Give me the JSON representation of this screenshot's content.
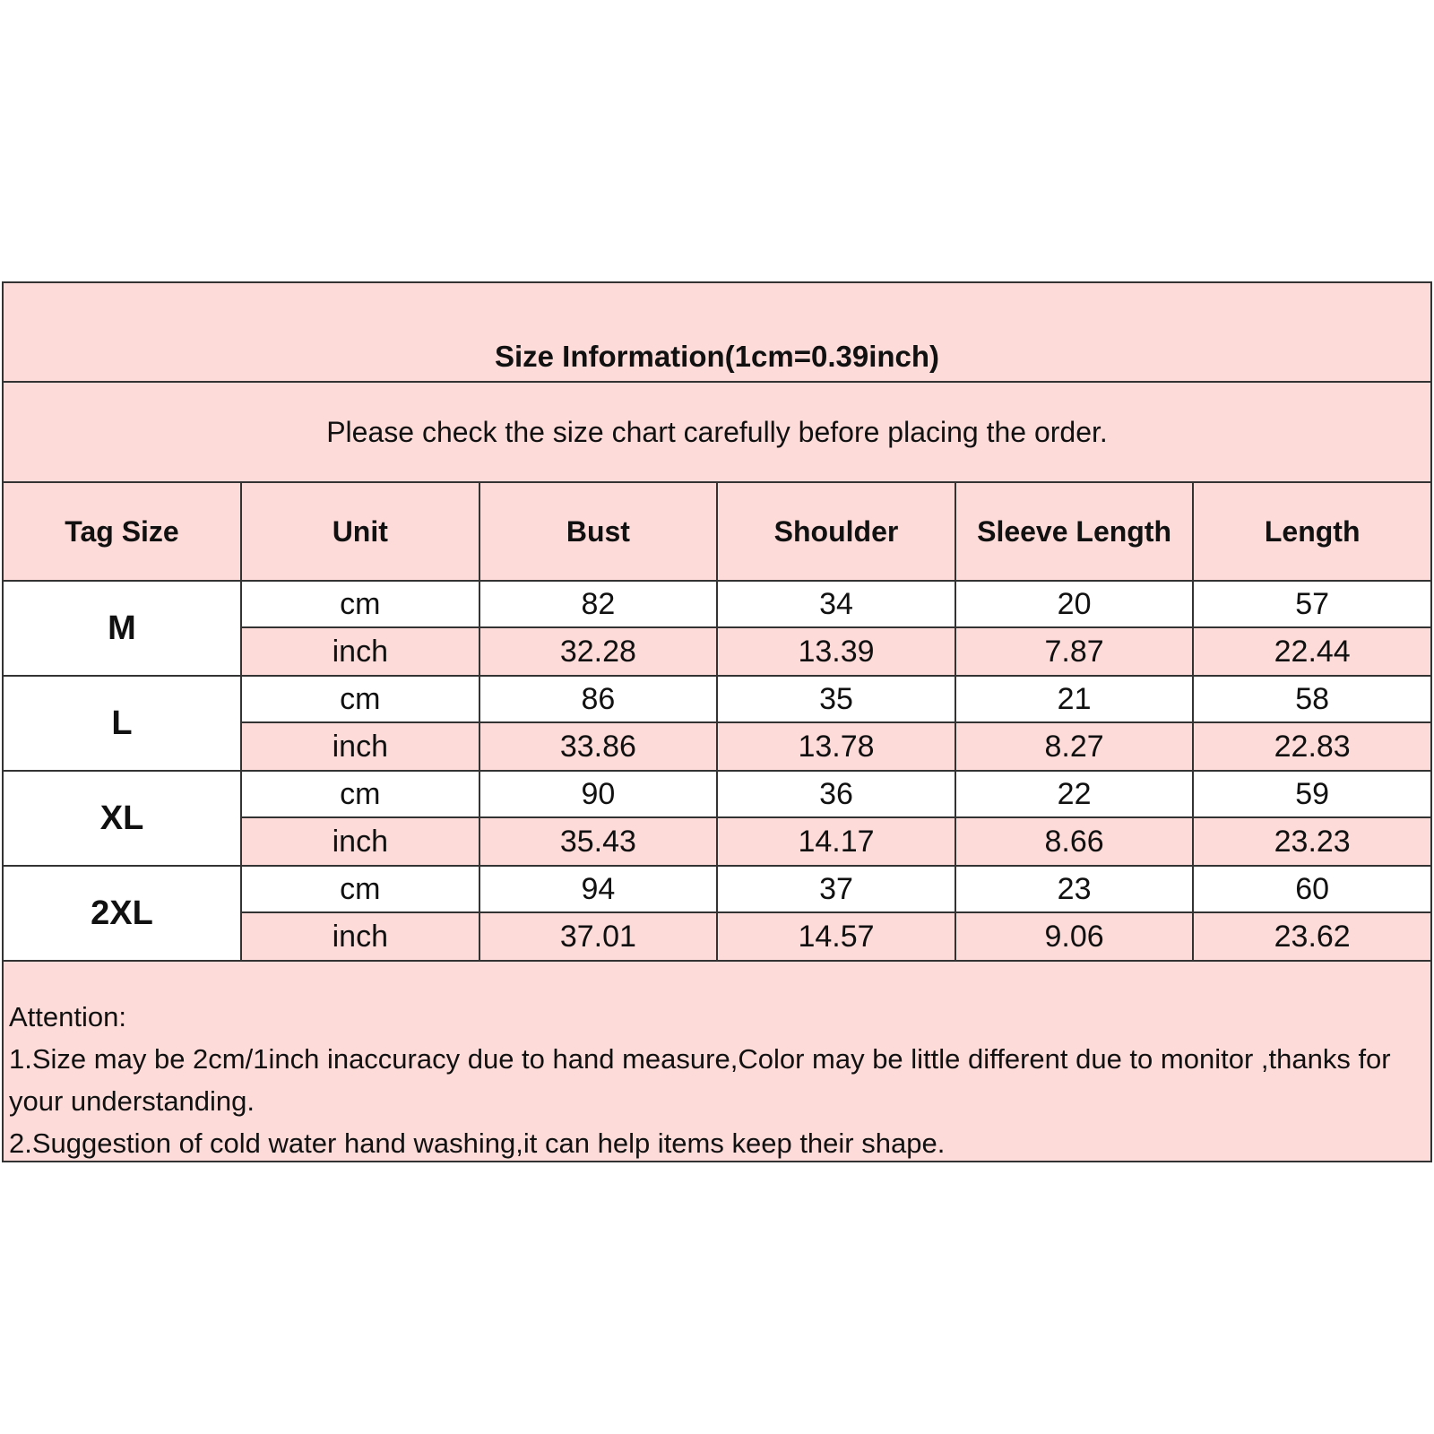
{
  "title": "Size Information(1cm=0.39inch)",
  "subtitle": "Please check the size chart carefully before placing the order.",
  "columns": [
    "Tag Size",
    "Unit",
    "Bust",
    "Shoulder",
    "Sleeve Length",
    "Length"
  ],
  "rows": [
    {
      "size": "M",
      "cm": {
        "unit": "cm",
        "values": [
          "82",
          "34",
          "20",
          "57"
        ]
      },
      "inch": {
        "unit": "inch",
        "values": [
          "32.28",
          "13.39",
          "7.87",
          "22.44"
        ]
      }
    },
    {
      "size": "L",
      "cm": {
        "unit": "cm",
        "values": [
          "86",
          "35",
          "21",
          "58"
        ]
      },
      "inch": {
        "unit": "inch",
        "values": [
          "33.86",
          "13.78",
          "8.27",
          "22.83"
        ]
      }
    },
    {
      "size": "XL",
      "cm": {
        "unit": "cm",
        "values": [
          "90",
          "36",
          "22",
          "59"
        ]
      },
      "inch": {
        "unit": "inch",
        "values": [
          "35.43",
          "14.17",
          "8.66",
          "23.23"
        ]
      }
    },
    {
      "size": "2XL",
      "cm": {
        "unit": "cm",
        "values": [
          "94",
          "37",
          "23",
          "60"
        ]
      },
      "inch": {
        "unit": "inch",
        "values": [
          "37.01",
          "14.57",
          "9.06",
          "23.62"
        ]
      }
    }
  ],
  "attention": {
    "heading": "Attention:",
    "lines": [
      "1.Size may be 2cm/1inch inaccuracy due to hand measure,Color may be little different due to monitor ,thanks for your understanding.",
      "2.Suggestion of cold water hand washing,it can help items keep their shape."
    ]
  },
  "colors": {
    "pink": "#fddbd9",
    "border": "#333333"
  }
}
